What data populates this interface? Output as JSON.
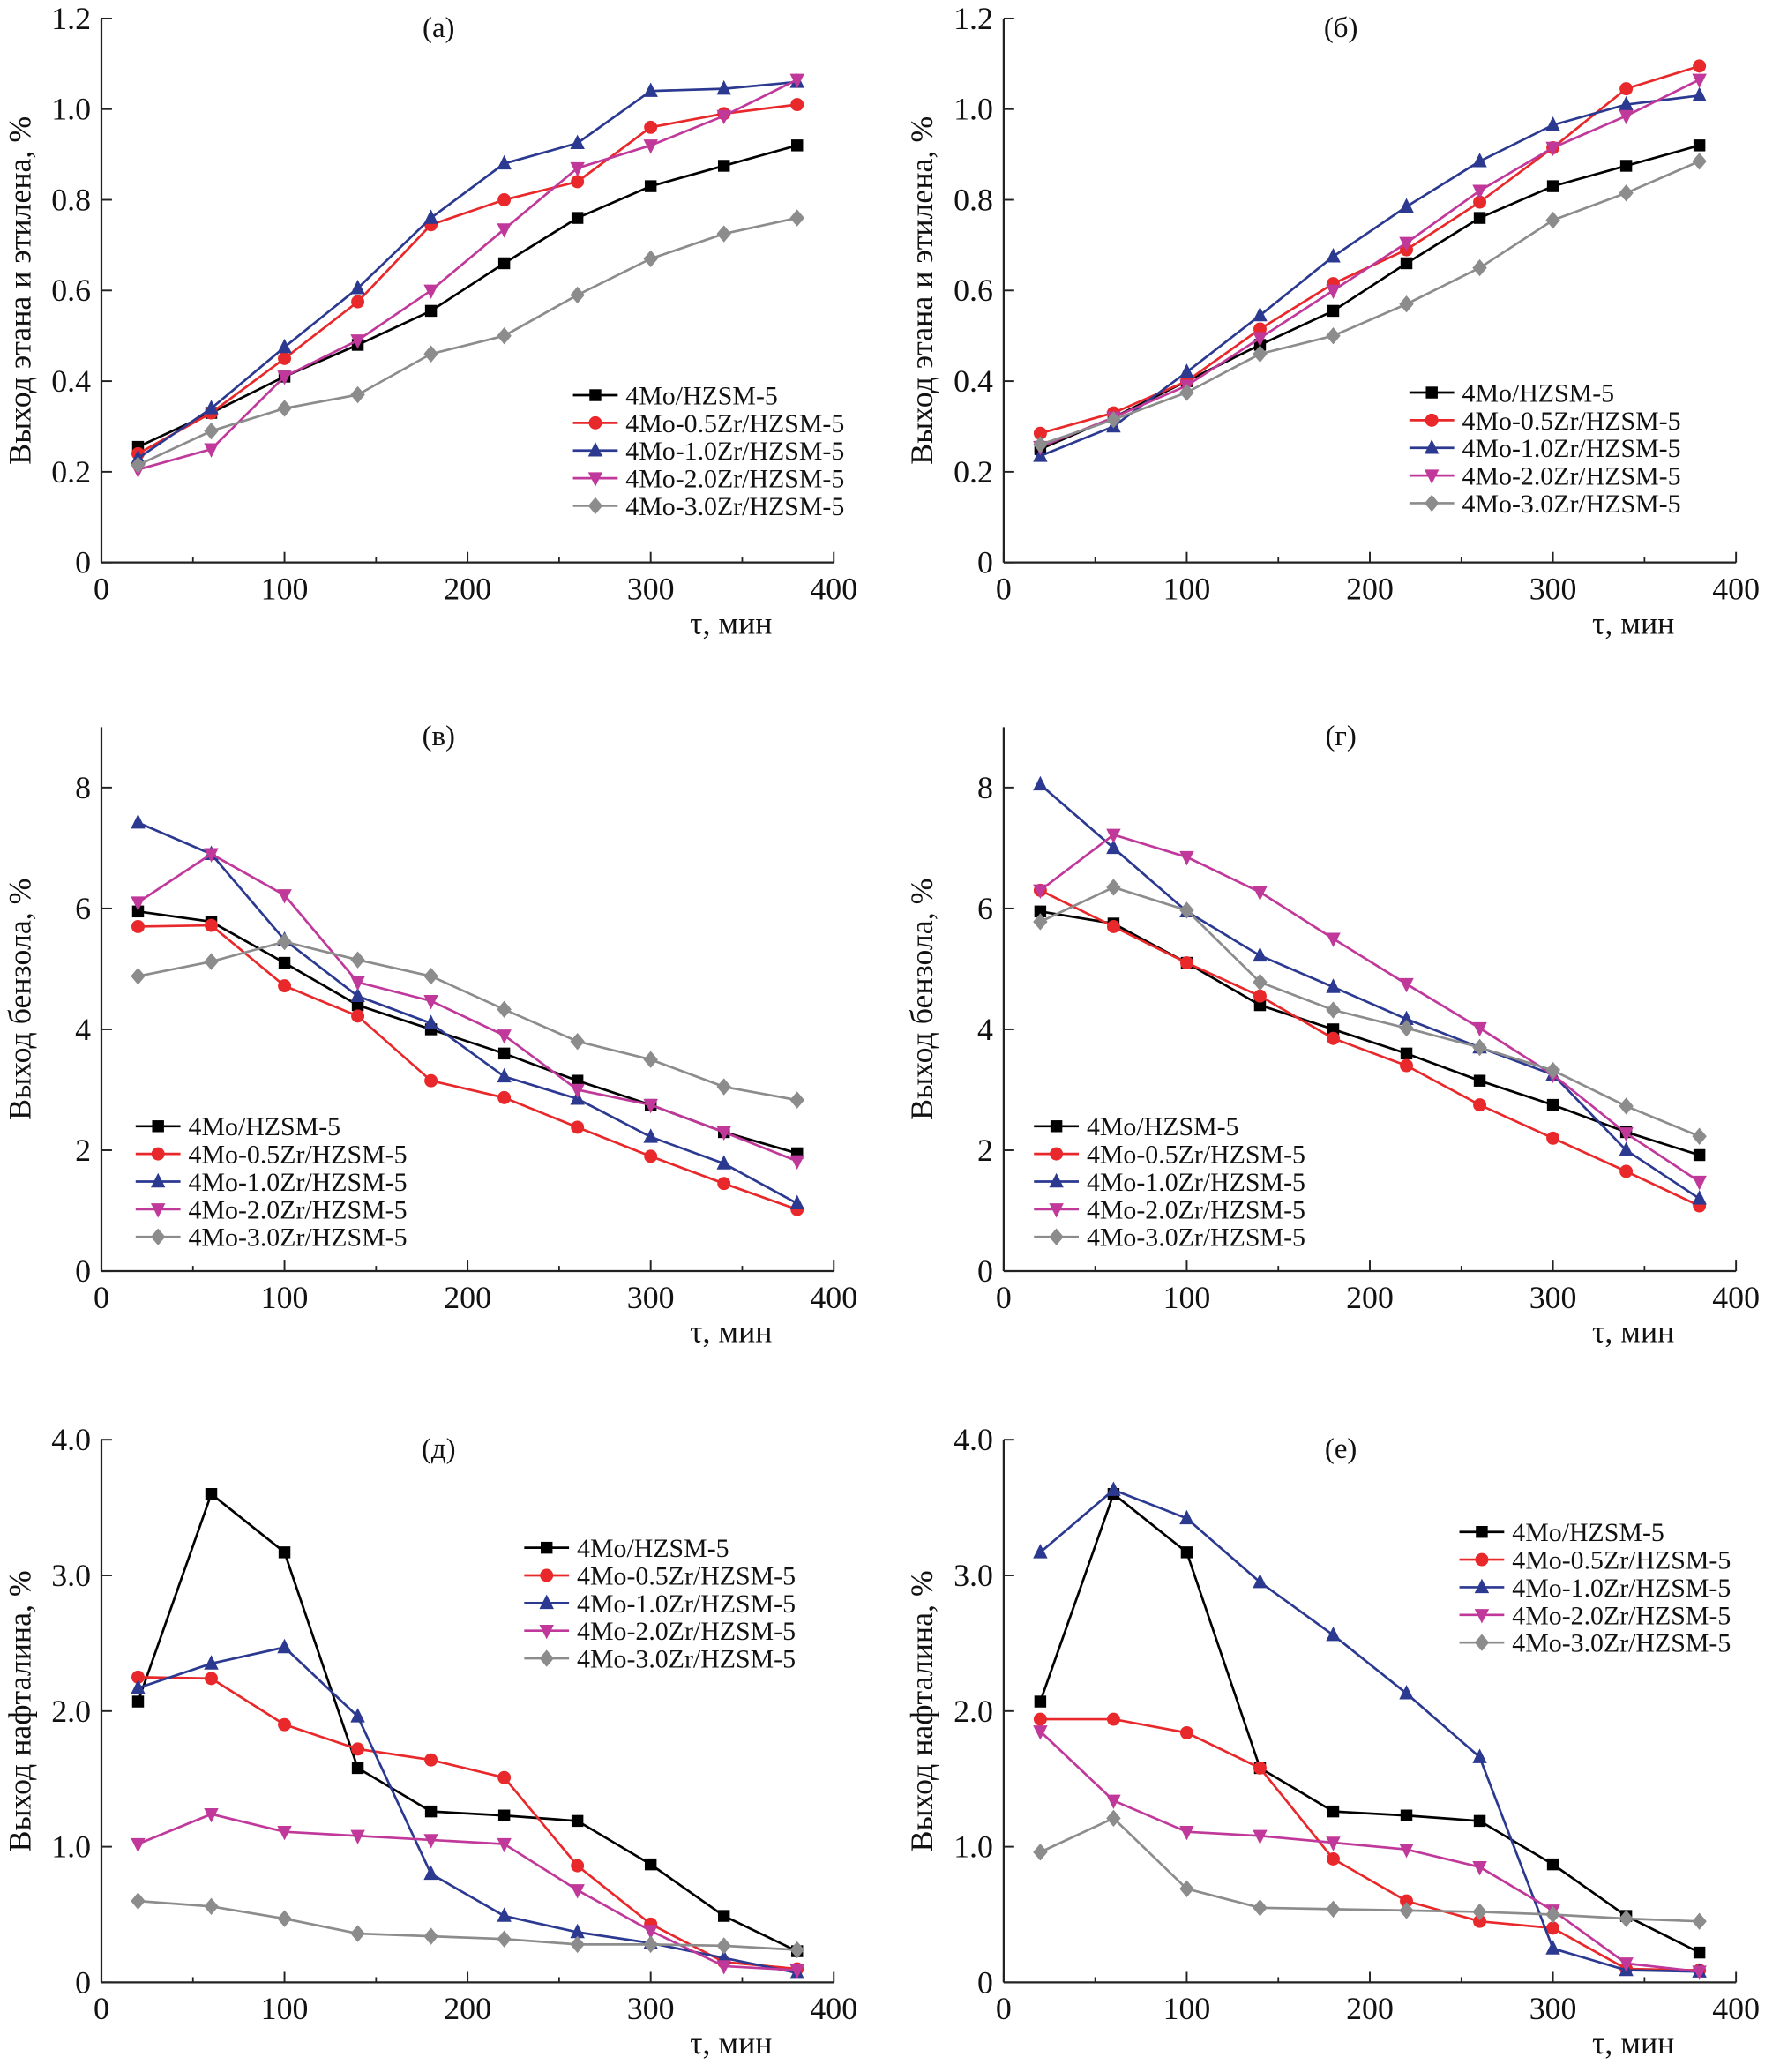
{
  "series_styles": [
    {
      "name": "4Mo/HZSM-5",
      "color": "#000000",
      "marker": "square"
    },
    {
      "name": "4Mo-0.5Zr/HZSM-5",
      "color": "#e8282a",
      "marker": "circle"
    },
    {
      "name": "4Mo-1.0Zr/HZSM-5",
      "color": "#2b3990",
      "marker": "triangle-up"
    },
    {
      "name": "4Mo-2.0Zr/HZSM-5",
      "color": "#c0399a",
      "marker": "triangle-down"
    },
    {
      "name": "4Mo-3.0Zr/HZSM-5",
      "color": "#8c8c8c",
      "marker": "diamond"
    }
  ],
  "chart_data": [
    {
      "type": "line",
      "title": "(а)",
      "xlabel": "τ, мин",
      "ylabel": "Выход этана и этилена, %",
      "xlim": [
        0,
        400
      ],
      "ylim": [
        0,
        1.2
      ],
      "xticks": [
        "0",
        "100",
        "200",
        "300",
        "400"
      ],
      "yticks": [
        "0",
        "0.2",
        "0.4",
        "0.6",
        "0.8",
        "1.0",
        "1.2"
      ],
      "legend": "right",
      "grid": false,
      "x": [
        20,
        60,
        100,
        140,
        180,
        220,
        260,
        300,
        340,
        380
      ],
      "series": [
        {
          "name": "4Mo/HZSM-5",
          "values": [
            0.255,
            0.33,
            0.41,
            0.48,
            0.555,
            0.66,
            0.76,
            0.83,
            0.875,
            0.92
          ]
        },
        {
          "name": "4Mo-0.5Zr/HZSM-5",
          "values": [
            0.24,
            0.33,
            0.45,
            0.575,
            0.745,
            0.8,
            0.84,
            0.96,
            0.99,
            1.01
          ]
        },
        {
          "name": "4Mo-1.0Zr/HZSM-5",
          "values": [
            0.23,
            0.34,
            0.475,
            0.605,
            0.76,
            0.88,
            0.925,
            1.04,
            1.045,
            1.06
          ]
        },
        {
          "name": "4Mo-2.0Zr/HZSM-5",
          "values": [
            0.205,
            0.25,
            0.41,
            0.49,
            0.6,
            0.735,
            0.87,
            0.92,
            0.985,
            1.065
          ]
        },
        {
          "name": "4Mo-3.0Zr/HZSM-5",
          "values": [
            0.215,
            0.29,
            0.34,
            0.37,
            0.46,
            0.5,
            0.59,
            0.67,
            0.725,
            0.76
          ]
        }
      ]
    },
    {
      "type": "line",
      "title": "(б)",
      "xlabel": "τ, мин",
      "ylabel": "Выход этана и этилена, %",
      "xlim": [
        0,
        400
      ],
      "ylim": [
        0,
        1.2
      ],
      "xticks": [
        "0",
        "100",
        "200",
        "300",
        "400"
      ],
      "yticks": [
        "0",
        "0.2",
        "0.4",
        "0.6",
        "0.8",
        "1.0",
        "1.2"
      ],
      "legend": "right",
      "grid": false,
      "x": [
        20,
        60,
        100,
        140,
        180,
        220,
        260,
        300,
        340,
        380
      ],
      "series": [
        {
          "name": "4Mo/HZSM-5",
          "values": [
            0.25,
            0.32,
            0.4,
            0.48,
            0.555,
            0.66,
            0.76,
            0.83,
            0.875,
            0.92
          ]
        },
        {
          "name": "4Mo-0.5Zr/HZSM-5",
          "values": [
            0.285,
            0.33,
            0.4,
            0.515,
            0.615,
            0.69,
            0.795,
            0.915,
            1.045,
            1.095
          ]
        },
        {
          "name": "4Mo-1.0Zr/HZSM-5",
          "values": [
            0.235,
            0.3,
            0.42,
            0.545,
            0.675,
            0.785,
            0.885,
            0.965,
            1.01,
            1.03
          ]
        },
        {
          "name": "4Mo-2.0Zr/HZSM-5",
          "values": [
            0.255,
            0.32,
            0.39,
            0.495,
            0.6,
            0.705,
            0.82,
            0.915,
            0.985,
            1.065
          ]
        },
        {
          "name": "4Mo-3.0Zr/HZSM-5",
          "values": [
            0.26,
            0.315,
            0.375,
            0.46,
            0.5,
            0.57,
            0.65,
            0.755,
            0.815,
            0.885
          ]
        }
      ]
    },
    {
      "type": "line",
      "title": "(в)",
      "xlabel": "τ, мин",
      "ylabel": "Выход бензола, %",
      "xlim": [
        0,
        400
      ],
      "ylim": [
        0,
        9
      ],
      "xticks": [
        "0",
        "100",
        "200",
        "300",
        "400"
      ],
      "yticks": [
        "0",
        "2",
        "4",
        "6",
        "8"
      ],
      "legend": "bottom-left",
      "grid": false,
      "x": [
        20,
        60,
        100,
        140,
        180,
        220,
        260,
        300,
        340,
        380
      ],
      "series": [
        {
          "name": "4Mo/HZSM-5",
          "values": [
            5.95,
            5.78,
            5.1,
            4.4,
            4.0,
            3.6,
            3.15,
            2.75,
            2.3,
            1.95
          ]
        },
        {
          "name": "4Mo-0.5Zr/HZSM-5",
          "values": [
            5.7,
            5.72,
            4.72,
            4.22,
            3.15,
            2.87,
            2.38,
            1.9,
            1.45,
            1.02
          ]
        },
        {
          "name": "4Mo-1.0Zr/HZSM-5",
          "values": [
            7.42,
            6.9,
            5.48,
            4.55,
            4.1,
            3.22,
            2.85,
            2.22,
            1.78,
            1.12
          ]
        },
        {
          "name": "4Mo-2.0Zr/HZSM-5",
          "values": [
            6.1,
            6.9,
            6.22,
            4.78,
            4.47,
            3.9,
            3.0,
            2.75,
            2.3,
            1.82
          ]
        },
        {
          "name": "4Mo-3.0Zr/HZSM-5",
          "values": [
            4.88,
            5.12,
            5.45,
            5.15,
            4.88,
            4.33,
            3.8,
            3.5,
            3.05,
            2.83
          ]
        }
      ]
    },
    {
      "type": "line",
      "title": "(г)",
      "xlabel": "τ, мин",
      "ylabel": "Выход бензола, %",
      "xlim": [
        0,
        400
      ],
      "ylim": [
        0,
        9
      ],
      "xticks": [
        "0",
        "100",
        "200",
        "300",
        "400"
      ],
      "yticks": [
        "0",
        "2",
        "4",
        "6",
        "8"
      ],
      "legend": "bottom-left",
      "grid": false,
      "x": [
        20,
        60,
        100,
        140,
        180,
        220,
        260,
        300,
        340,
        380
      ],
      "series": [
        {
          "name": "4Mo/HZSM-5",
          "values": [
            5.95,
            5.75,
            5.1,
            4.4,
            4.0,
            3.6,
            3.15,
            2.75,
            2.3,
            1.92
          ]
        },
        {
          "name": "4Mo-0.5Zr/HZSM-5",
          "values": [
            6.3,
            5.7,
            5.1,
            4.55,
            3.85,
            3.4,
            2.75,
            2.2,
            1.65,
            1.08
          ]
        },
        {
          "name": "4Mo-1.0Zr/HZSM-5",
          "values": [
            8.05,
            7.0,
            5.95,
            5.22,
            4.7,
            4.17,
            3.7,
            3.25,
            2.0,
            1.2
          ]
        },
        {
          "name": "4Mo-2.0Zr/HZSM-5",
          "values": [
            6.3,
            7.22,
            6.85,
            6.27,
            5.5,
            4.75,
            4.02,
            3.25,
            2.28,
            1.48
          ]
        },
        {
          "name": "4Mo-3.0Zr/HZSM-5",
          "values": [
            5.78,
            6.35,
            5.97,
            4.78,
            4.32,
            4.02,
            3.7,
            3.32,
            2.73,
            2.23
          ]
        }
      ]
    },
    {
      "type": "line",
      "title": "(д)",
      "xlabel": "τ, мин",
      "ylabel": "Выход нафталина, %",
      "xlim": [
        0,
        400
      ],
      "ylim": [
        0,
        4
      ],
      "xticks": [
        "0",
        "100",
        "200",
        "300",
        "400"
      ],
      "yticks": [
        "0",
        "1.0",
        "2.0",
        "3.0",
        "4.0"
      ],
      "legend": "top-right",
      "grid": false,
      "x": [
        20,
        60,
        100,
        140,
        180,
        220,
        260,
        300,
        340,
        380
      ],
      "series": [
        {
          "name": "4Mo/HZSM-5",
          "values": [
            2.07,
            3.6,
            3.17,
            1.58,
            1.26,
            1.23,
            1.19,
            0.87,
            0.49,
            0.23
          ]
        },
        {
          "name": "4Mo-0.5Zr/HZSM-5",
          "values": [
            2.25,
            2.24,
            1.9,
            1.72,
            1.64,
            1.51,
            0.86,
            0.43,
            0.15,
            0.1
          ]
        },
        {
          "name": "4Mo-1.0Zr/HZSM-5",
          "values": [
            2.17,
            2.35,
            2.47,
            1.96,
            0.8,
            0.49,
            0.37,
            0.29,
            0.18,
            0.07
          ]
        },
        {
          "name": "4Mo-2.0Zr/HZSM-5",
          "values": [
            1.02,
            1.24,
            1.11,
            1.08,
            1.05,
            1.02,
            0.68,
            0.38,
            0.12,
            0.09
          ]
        },
        {
          "name": "4Mo-3.0Zr/HZSM-5",
          "values": [
            0.6,
            0.56,
            0.47,
            0.36,
            0.34,
            0.32,
            0.28,
            0.28,
            0.27,
            0.24
          ]
        }
      ]
    },
    {
      "type": "line",
      "title": "(е)",
      "xlabel": "τ, мин",
      "ylabel": "Выход нафталина, %",
      "xlim": [
        0,
        400
      ],
      "ylim": [
        0,
        4
      ],
      "xticks": [
        "0",
        "100",
        "200",
        "300",
        "400"
      ],
      "yticks": [
        "0",
        "1.0",
        "2.0",
        "3.0",
        "4.0"
      ],
      "legend": "top-right",
      "grid": false,
      "x": [
        20,
        60,
        100,
        140,
        180,
        220,
        260,
        300,
        340,
        380
      ],
      "series": [
        {
          "name": "4Mo/HZSM-5",
          "values": [
            2.07,
            3.6,
            3.17,
            1.58,
            1.26,
            1.23,
            1.19,
            0.87,
            0.49,
            0.22
          ]
        },
        {
          "name": "4Mo-0.5Zr/HZSM-5",
          "values": [
            1.94,
            1.94,
            1.84,
            1.58,
            0.91,
            0.6,
            0.45,
            0.4,
            0.1,
            0.09
          ]
        },
        {
          "name": "4Mo-1.0Zr/HZSM-5",
          "values": [
            3.17,
            3.63,
            3.42,
            2.95,
            2.56,
            2.13,
            1.66,
            0.25,
            0.09,
            0.08
          ]
        },
        {
          "name": "4Mo-2.0Zr/HZSM-5",
          "values": [
            1.85,
            1.34,
            1.11,
            1.08,
            1.03,
            0.98,
            0.85,
            0.53,
            0.14,
            0.08
          ]
        },
        {
          "name": "4Mo-3.0Zr/HZSM-5",
          "values": [
            0.96,
            1.21,
            0.69,
            0.55,
            0.54,
            0.53,
            0.52,
            0.5,
            0.47,
            0.45
          ]
        }
      ]
    }
  ]
}
